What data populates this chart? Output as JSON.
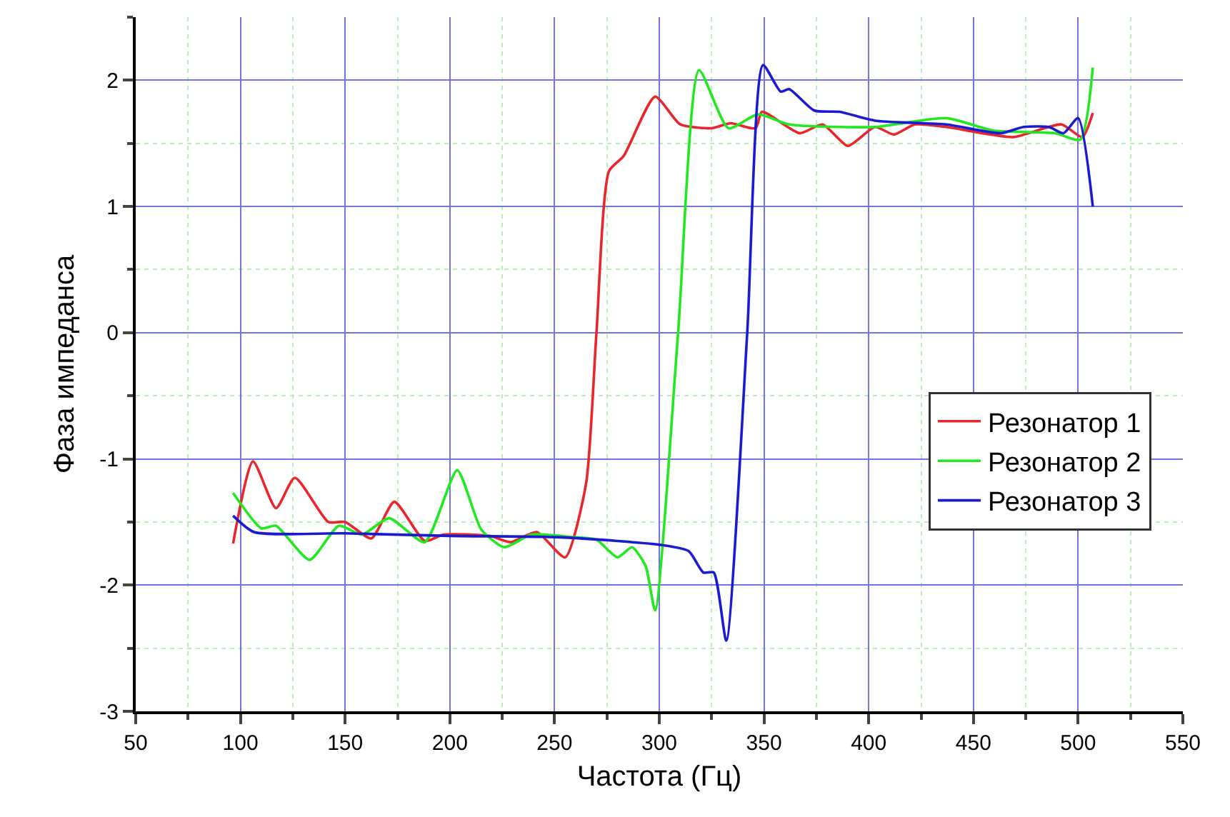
{
  "chart_data": {
    "type": "line",
    "xlabel": "Частота (Гц)",
    "ylabel": "Фаза импеданса",
    "xlim": [
      50,
      550
    ],
    "xticks": [
      50,
      {
        "value": 75,
        "label": null
      },
      100,
      {
        "value": 125,
        "label": null
      },
      150,
      {
        "value": 175,
        "label": null
      },
      200,
      {
        "value": 225,
        "label": null
      },
      250,
      {
        "value": 275,
        "label": null
      },
      300,
      {
        "value": 325,
        "label": null
      },
      350,
      {
        "value": 375,
        "label": null
      },
      400,
      {
        "value": 425,
        "label": null
      },
      450,
      {
        "value": 475,
        "label": null
      },
      500,
      {
        "value": 525,
        "label": null
      },
      550
    ],
    "ylim": [
      -3,
      2.5
    ],
    "yticks": [
      -3,
      {
        "value": -2.5,
        "label": null
      },
      -2,
      {
        "value": -1.5,
        "label": null
      },
      -1,
      {
        "value": -0.5,
        "label": null
      },
      0,
      {
        "value": 0.5,
        "label": null
      },
      1,
      {
        "value": 1.5,
        "label": null
      },
      2,
      {
        "value": 2.5,
        "label": null
      }
    ],
    "grid": true,
    "legend": "right",
    "series": [
      {
        "name": "Резонатор 1",
        "color": "#e8262b",
        "x": [
          96.5,
          106,
          117,
          126,
          142,
          150,
          162.5,
          173.5,
          188,
          197,
          219,
          229,
          241.5,
          255,
          265,
          270,
          276,
          283,
          298,
          310,
          325,
          334,
          346,
          349,
          367,
          378,
          390,
          403,
          412,
          422,
          437,
          469,
          492,
          502,
          507
        ],
        "values": [
          -1.67,
          -1.02,
          -1.39,
          -1.15,
          -1.5,
          -1.5,
          -1.63,
          -1.34,
          -1.65,
          -1.6,
          -1.61,
          -1.66,
          -1.58,
          -1.78,
          -1.2,
          0,
          1.28,
          1.4,
          1.87,
          1.65,
          1.62,
          1.66,
          1.62,
          1.75,
          1.58,
          1.65,
          1.48,
          1.63,
          1.57,
          1.65,
          1.63,
          1.55,
          1.65,
          1.55,
          1.74
        ]
      },
      {
        "name": "Резонатор 2",
        "color": "#22e822",
        "x": [
          96.5,
          110,
          117,
          133,
          147,
          158,
          171,
          188,
          203.5,
          215,
          226,
          239,
          259,
          270,
          280,
          287,
          293.5,
          298,
          309,
          319,
          333,
          347,
          362,
          403,
          437,
          460,
          489,
          501,
          507
        ],
        "values": [
          -1.27,
          -1.55,
          -1.53,
          -1.8,
          -1.53,
          -1.6,
          -1.47,
          -1.66,
          -1.09,
          -1.56,
          -1.7,
          -1.6,
          -1.62,
          -1.64,
          -1.78,
          -1.7,
          -1.85,
          -2.2,
          0,
          2.08,
          1.62,
          1.73,
          1.65,
          1.63,
          1.7,
          1.6,
          1.58,
          1.53,
          2.1
        ]
      },
      {
        "name": "Резонатор 3",
        "color": "#1a1ad0",
        "x": [
          96.5,
          106.5,
          150,
          200,
          250,
          280,
          300,
          314,
          321,
          326,
          332,
          342,
          349.5,
          358,
          362,
          374,
          386,
          403,
          437,
          463,
          474,
          486,
          493,
          500,
          507
        ],
        "values": [
          -1.45,
          -1.58,
          -1.59,
          -1.61,
          -1.62,
          -1.65,
          -1.68,
          -1.73,
          -1.9,
          -1.9,
          -2.44,
          0,
          2.12,
          1.91,
          1.93,
          1.76,
          1.75,
          1.68,
          1.65,
          1.58,
          1.63,
          1.63,
          1.58,
          1.7,
          1.0
        ]
      }
    ]
  }
}
